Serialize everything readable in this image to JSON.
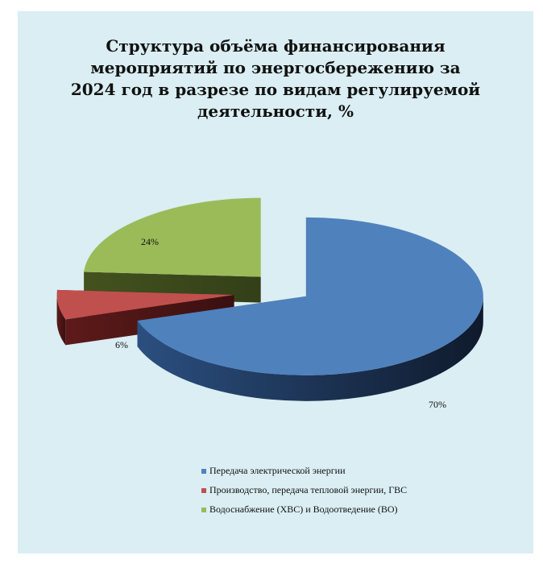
{
  "chart_data": {
    "type": "pie",
    "title": "Структура объёма финансирования мероприятий по энергосбережению за 2024 год в разрезе по видам регулируемой деятельности, %",
    "slices": [
      {
        "name": "Передача электрической энергии",
        "value": 70,
        "label": "70%",
        "color": "#4f81bd"
      },
      {
        "name": "Производство, передача тепловой энергии, ГВС",
        "value": 6,
        "label": "6%",
        "color": "#c0504d"
      },
      {
        "name": "Водоснабжение (ХВС) и Водоотведение (ВО)",
        "value": 24,
        "label": "24%",
        "color": "#9bbb59"
      }
    ],
    "legend_position": "bottom",
    "three_d": true,
    "exploded": true
  }
}
